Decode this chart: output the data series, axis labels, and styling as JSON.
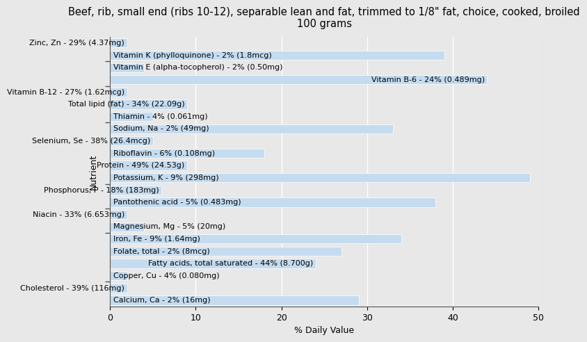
{
  "title": "Beef, rib, small end (ribs 10-12), separable lean and fat, trimmed to 1/8\" fat, choice, cooked, broiled\n100 grams",
  "xlabel": "% Daily Value",
  "ylabel": "Nutrient",
  "xlim": [
    0,
    50
  ],
  "background_color": "#e8e8e8",
  "bar_color": "#c5dcf0",
  "nutrients": [
    {
      "label": "Calcium, Ca - 2% (16mg)",
      "value": 2,
      "label_side": "right"
    },
    {
      "label": "Cholesterol - 39% (116mg)",
      "value": 39,
      "label_side": "right"
    },
    {
      "label": "Copper, Cu - 4% (0.080mg)",
      "value": 4,
      "label_side": "right"
    },
    {
      "label": "Fatty acids, total saturated - 44% (8.700g)",
      "value": 44,
      "label_side": "right"
    },
    {
      "label": "Folate, total - 2% (8mcg)",
      "value": 2,
      "label_side": "right"
    },
    {
      "label": "Iron, Fe - 9% (1.64mg)",
      "value": 9,
      "label_side": "right"
    },
    {
      "label": "Magnesium, Mg - 5% (20mg)",
      "value": 5,
      "label_side": "right"
    },
    {
      "label": "Niacin - 33% (6.653mg)",
      "value": 33,
      "label_side": "right"
    },
    {
      "label": "Pantothenic acid - 5% (0.483mg)",
      "value": 5,
      "label_side": "right"
    },
    {
      "label": "Phosphorus, P - 18% (183mg)",
      "value": 18,
      "label_side": "right"
    },
    {
      "label": "Potassium, K - 9% (298mg)",
      "value": 9,
      "label_side": "right"
    },
    {
      "label": "Protein - 49% (24.53g)",
      "value": 49,
      "label_side": "right"
    },
    {
      "label": "Riboflavin - 6% (0.108mg)",
      "value": 6,
      "label_side": "right"
    },
    {
      "label": "Selenium, Se - 38% (26.4mcg)",
      "value": 38,
      "label_side": "right"
    },
    {
      "label": "Sodium, Na - 2% (49mg)",
      "value": 2,
      "label_side": "right"
    },
    {
      "label": "Thiamin - 4% (0.061mg)",
      "value": 4,
      "label_side": "right"
    },
    {
      "label": "Total lipid (fat) - 34% (22.09g)",
      "value": 34,
      "label_side": "right"
    },
    {
      "label": "Vitamin B-12 - 27% (1.62mcg)",
      "value": 27,
      "label_side": "right"
    },
    {
      "label": "Vitamin B-6 - 24% (0.489mg)",
      "value": 24,
      "label_side": "right"
    },
    {
      "label": "Vitamin E (alpha-tocopherol) - 2% (0.50mg)",
      "value": 2,
      "label_side": "right"
    },
    {
      "label": "Vitamin K (phylloquinone) - 2% (1.8mcg)",
      "value": 2,
      "label_side": "right"
    },
    {
      "label": "Zinc, Zn - 29% (4.37mg)",
      "value": 29,
      "label_side": "right"
    }
  ],
  "group_boundaries": [
    1.5,
    3.5,
    6.5,
    11.5,
    13.5,
    15.5,
    19.5
  ],
  "title_fontsize": 10.5,
  "axis_label_fontsize": 9,
  "bar_label_fontsize": 8,
  "tick_fontsize": 9
}
